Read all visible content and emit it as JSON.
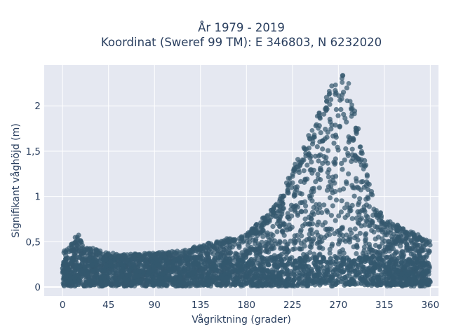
{
  "chart_data": {
    "type": "scatter",
    "title_line1": "År 1979 - 2019",
    "title_line2": "Koordinat (Sweref 99 TM): E 346803, N 6232020",
    "xlabel": "Vågriktning (grader)",
    "ylabel": "Signifikant våghöjd (m)",
    "xlim": [
      -18,
      368
    ],
    "ylim": [
      -0.1,
      2.45
    ],
    "x_ticks": [
      0,
      45,
      90,
      135,
      180,
      225,
      270,
      315,
      360
    ],
    "x_tick_labels": [
      "0",
      "45",
      "90",
      "135",
      "180",
      "225",
      "270",
      "315",
      "360"
    ],
    "y_ticks": [
      0,
      0.5,
      1,
      1.5,
      2
    ],
    "y_tick_labels": [
      "0",
      "0,5",
      "1",
      "1,5",
      "2"
    ],
    "grid": true,
    "legend": false,
    "point_color": "#34586e",
    "plot_background": "#e5e8f1",
    "series": [
      {
        "upper_envelope": [
          [
            0,
            0.4
          ],
          [
            5,
            0.42
          ],
          [
            10,
            0.5
          ],
          [
            15,
            0.6
          ],
          [
            20,
            0.45
          ],
          [
            30,
            0.43
          ],
          [
            45,
            0.38
          ],
          [
            60,
            0.36
          ],
          [
            75,
            0.37
          ],
          [
            90,
            0.38
          ],
          [
            105,
            0.39
          ],
          [
            120,
            0.41
          ],
          [
            135,
            0.47
          ],
          [
            150,
            0.5
          ],
          [
            165,
            0.55
          ],
          [
            180,
            0.58
          ],
          [
            195,
            0.75
          ],
          [
            210,
            0.95
          ],
          [
            225,
            1.3
          ],
          [
            240,
            1.65
          ],
          [
            255,
            2.05
          ],
          [
            265,
            2.25
          ],
          [
            270,
            2.3
          ],
          [
            275,
            2.36
          ],
          [
            280,
            2.3
          ],
          [
            285,
            2.0
          ],
          [
            295,
            1.45
          ],
          [
            305,
            0.95
          ],
          [
            315,
            0.75
          ],
          [
            325,
            0.7
          ],
          [
            335,
            0.65
          ],
          [
            345,
            0.6
          ],
          [
            355,
            0.55
          ],
          [
            360,
            0.5
          ]
        ],
        "lower_bound": 0.0
      }
    ]
  }
}
